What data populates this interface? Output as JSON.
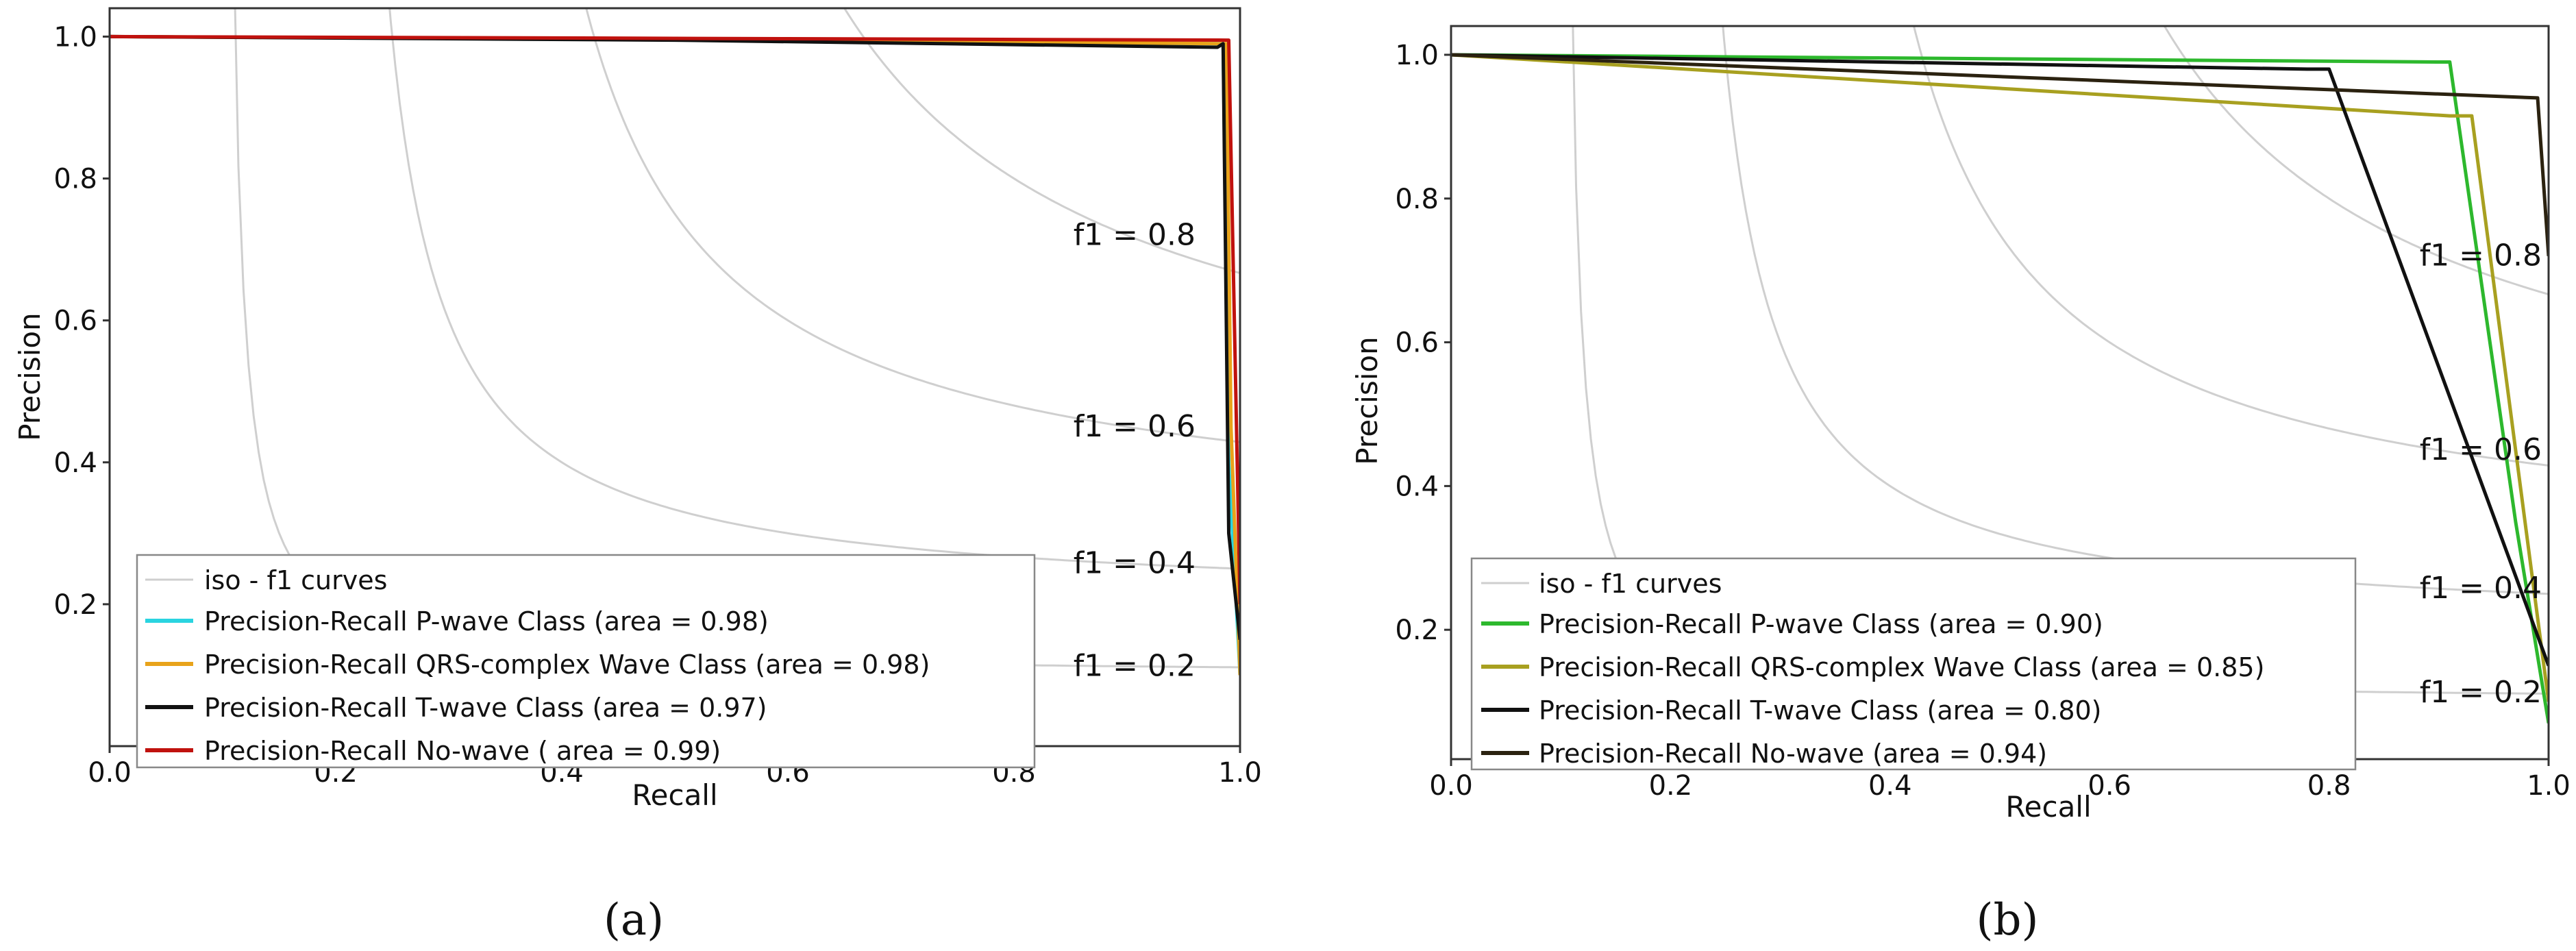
{
  "chart_data": [
    {
      "panel_label": "(a)",
      "type": "line",
      "xlabel": "Recall",
      "ylabel": "Precision",
      "xlim": [
        0.0,
        1.0
      ],
      "ylim": [
        0.0,
        1.04
      ],
      "xticks": [
        "0.0",
        "0.2",
        "0.4",
        "0.6",
        "0.8",
        "1.0"
      ],
      "yticks": [
        "0.2",
        "0.4",
        "0.6",
        "0.8",
        "1.0"
      ],
      "iso_f1": {
        "values": [
          0.2,
          0.4,
          0.6,
          0.8
        ],
        "labels": [
          "f1 = 0.2",
          "f1 = 0.4",
          "f1 = 0.6",
          "f1 = 0.8"
        ]
      },
      "legend": {
        "position": "lower-left",
        "iso_label": "iso - f1 curves",
        "iso_color": "#cfcfcf"
      },
      "series": [
        {
          "name": "Precision-Recall P-wave Class (area = 0.98)",
          "color": "#2ad4e0",
          "points": [
            [
              0.0,
              1.0
            ],
            [
              0.6,
              0.995
            ],
            [
              0.985,
              0.99
            ],
            [
              0.99,
              0.4
            ],
            [
              1.0,
              0.1
            ]
          ]
        },
        {
          "name": "Precision-Recall QRS-complex Wave Class (area = 0.98)",
          "color": "#e8a31a",
          "points": [
            [
              0.0,
              1.0
            ],
            [
              0.6,
              0.995
            ],
            [
              0.988,
              0.99
            ],
            [
              0.992,
              0.45
            ],
            [
              1.0,
              0.1
            ]
          ]
        },
        {
          "name": "Precision-Recall T-wave Class (area = 0.97)",
          "color": "#111111",
          "points": [
            [
              0.0,
              1.0
            ],
            [
              0.5,
              0.995
            ],
            [
              0.98,
              0.985
            ],
            [
              0.985,
              0.99
            ],
            [
              0.99,
              0.3
            ],
            [
              1.0,
              0.15
            ]
          ]
        },
        {
          "name": "Precision-Recall No-wave ( area = 0.99)",
          "color": "#c0120e",
          "points": [
            [
              0.0,
              1.0
            ],
            [
              0.6,
              0.997
            ],
            [
              0.99,
              0.995
            ],
            [
              1.0,
              0.2
            ]
          ]
        }
      ]
    },
    {
      "panel_label": "(b)",
      "type": "line",
      "xlabel": "Recall",
      "ylabel": "Precision",
      "xlim": [
        0.0,
        1.0
      ],
      "ylim": [
        0.02,
        1.04
      ],
      "xticks": [
        "0.0",
        "0.2",
        "0.4",
        "0.6",
        "0.8",
        "1.0"
      ],
      "yticks": [
        "0.2",
        "0.4",
        "0.6",
        "0.8",
        "1.0"
      ],
      "iso_f1": {
        "values": [
          0.2,
          0.4,
          0.6,
          0.8
        ],
        "labels": [
          "f1 = 0.2",
          "f1 = 0.4",
          "f1 = 0.6",
          "f1 = 0.8"
        ]
      },
      "legend": {
        "position": "lower-left",
        "iso_label": "iso - f1 curves",
        "iso_color": "#cfcfcf"
      },
      "series": [
        {
          "name": "Precision-Recall P-wave Class (area = 0.90)",
          "color": "#2db82d",
          "points": [
            [
              0.0,
              1.0
            ],
            [
              0.9,
              0.99
            ],
            [
              0.91,
              0.99
            ],
            [
              0.97,
              0.35
            ],
            [
              1.0,
              0.07
            ]
          ]
        },
        {
          "name": "Precision-Recall QRS-complex Wave Class (area = 0.85)",
          "color": "#a8a020",
          "points": [
            [
              0.0,
              1.0
            ],
            [
              0.91,
              0.915
            ],
            [
              0.93,
              0.915
            ],
            [
              1.0,
              0.1
            ]
          ]
        },
        {
          "name": "Precision-Recall T-wave Class (area = 0.80)",
          "color": "#111111",
          "points": [
            [
              0.0,
              1.0
            ],
            [
              0.78,
              0.98
            ],
            [
              0.8,
              0.98
            ],
            [
              1.0,
              0.15
            ]
          ]
        },
        {
          "name": "Precision-Recall No-wave (area = 0.94)",
          "color": "#2b2210",
          "points": [
            [
              0.0,
              1.0
            ],
            [
              0.99,
              0.94
            ],
            [
              1.0,
              0.72
            ]
          ]
        }
      ]
    }
  ]
}
